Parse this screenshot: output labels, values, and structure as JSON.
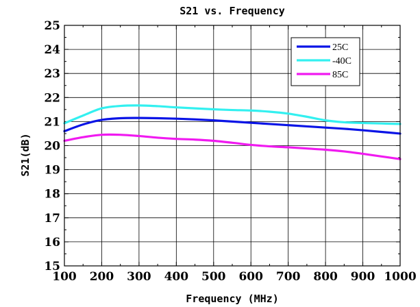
{
  "chart_data": {
    "type": "line",
    "title": "S21 vs. Frequency",
    "xlabel": "Frequency (MHz)",
    "ylabel": "S21(dB)",
    "xlim": [
      100,
      1000
    ],
    "ylim": [
      15,
      25
    ],
    "xticks": [
      100,
      200,
      300,
      400,
      500,
      600,
      700,
      800,
      900,
      1000
    ],
    "yticks": [
      15,
      16,
      17,
      18,
      19,
      20,
      21,
      22,
      23,
      24,
      25
    ],
    "grid": true,
    "legend_position": "top-right",
    "series": [
      {
        "name": "25C",
        "color": "#0a14e6",
        "x": [
          100,
          150,
          200,
          250,
          300,
          350,
          400,
          450,
          500,
          550,
          600,
          650,
          700,
          750,
          800,
          850,
          900,
          950,
          1000
        ],
        "y": [
          20.6,
          20.88,
          21.07,
          21.14,
          21.15,
          21.14,
          21.12,
          21.09,
          21.05,
          21.0,
          20.95,
          20.9,
          20.85,
          20.8,
          20.75,
          20.7,
          20.64,
          20.57,
          20.5
        ]
      },
      {
        "name": "-40C",
        "color": "#33f0f0",
        "x": [
          100,
          150,
          200,
          250,
          300,
          350,
          400,
          450,
          500,
          550,
          600,
          650,
          700,
          750,
          800,
          850,
          900,
          950,
          1000
        ],
        "y": [
          20.93,
          21.25,
          21.55,
          21.65,
          21.67,
          21.64,
          21.59,
          21.55,
          21.51,
          21.48,
          21.46,
          21.41,
          21.33,
          21.2,
          21.05,
          20.97,
          20.94,
          20.92,
          20.9
        ]
      },
      {
        "name": "85C",
        "color": "#f01af0",
        "x": [
          100,
          150,
          200,
          250,
          300,
          350,
          400,
          450,
          500,
          550,
          600,
          650,
          700,
          750,
          800,
          850,
          900,
          950,
          1000
        ],
        "y": [
          20.2,
          20.35,
          20.45,
          20.45,
          20.4,
          20.33,
          20.28,
          20.25,
          20.2,
          20.12,
          20.03,
          19.97,
          19.93,
          19.88,
          19.83,
          19.76,
          19.66,
          19.55,
          19.44
        ]
      }
    ]
  }
}
